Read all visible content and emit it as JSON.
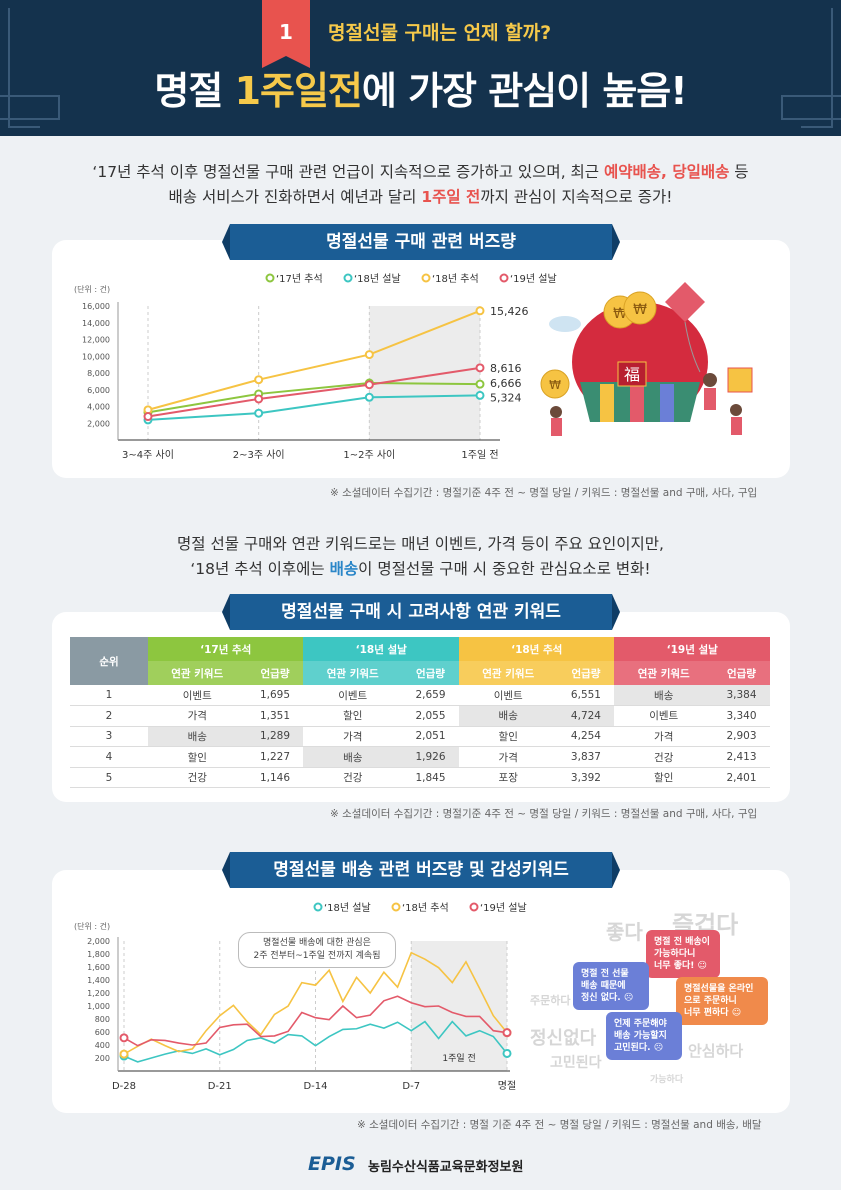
{
  "header": {
    "number": "1",
    "subtitle": "명절선물 구매는 언제 할까?",
    "title_pre": "명절 ",
    "title_highlight": "1주일전",
    "title_post": "에 가장 관심이 높음!"
  },
  "intro1": {
    "line1_a": "‘17년 추석 이후 명절선물 구매 관련 언급이 지속적으로 증가하고 있으며, 최근 ",
    "line1_red": "예약배송, 당일배송",
    "line1_b": " 등",
    "line2_a": "배송 서비스가 진화하면서 예년과 달리 ",
    "line2_red": "1주일 전",
    "line2_b": "까지 관심이 지속적으로 증가!"
  },
  "intro2": {
    "line1": "명절 선물 구매와 연관 키워드로는 매년 이벤트, 가격 등이 주요 요인이지만,",
    "line2_a": "‘18년 추석 이후에는 ",
    "line2_blue": "배송",
    "line2_b": "이 명절선물 구매 시 중요한 관심요소로 변화!"
  },
  "sections": {
    "s1_title": "명절선물 구매 관련 버즈량",
    "s2_title": "명절선물 구매 시 고려사항 연관 키워드",
    "s3_title": "명절선물 배송 관련 버즈량 및 감성키워드"
  },
  "notes": {
    "n1": "※ 소셜데이터 수집기간 : 명절기준 4주 전 ~ 명절 당일 / 키워드 : 명절선물 and 구매, 사다, 구입",
    "n2": "※ 소셜데이터 수집기간 : 명절기준 4주 전 ~ 명절 당일 / 키워드 : 명절선물 and 구매, 사다, 구입",
    "n3": "※ 소셜데이터 수집기간 : 명절 기준 4주 전 ~ 명절 당일 / 키워드 : 명절선물 and 배송, 배달"
  },
  "illustration": {
    "bag_char": "福",
    "coin": "₩"
  },
  "chart_data": [
    {
      "type": "line",
      "unit_label": "(단위 : 건)",
      "categories": [
        "3~4주 사이",
        "2~3주 사이",
        "1~2주 사이",
        "1주일 전"
      ],
      "ylim": [
        0,
        16000
      ],
      "yticks": [
        "2,000",
        "4,000",
        "6,000",
        "8,000",
        "10,000",
        "12,000",
        "14,000",
        "16,000"
      ],
      "legend_position": "top",
      "series": [
        {
          "name": "‘17년 추석",
          "color": "#8dc63f",
          "values": [
            3300,
            5500,
            6800,
            6666
          ]
        },
        {
          "name": "‘18년 설날",
          "color": "#3dc6c2",
          "values": [
            2400,
            3200,
            5100,
            5324
          ]
        },
        {
          "name": "‘18년 추석",
          "color": "#f6c343",
          "values": [
            3600,
            7200,
            10200,
            15426
          ]
        },
        {
          "name": "‘19년 설날",
          "color": "#e35a6a",
          "values": [
            2800,
            4900,
            6600,
            8616
          ]
        }
      ],
      "end_labels": [
        "15,426",
        "8,616",
        "6,666",
        "5,324"
      ]
    },
    {
      "type": "table",
      "headers": {
        "rank": "순위",
        "groups": [
          "‘17년 추석",
          "‘18년 설날",
          "‘18년 추석",
          "‘19년 설날"
        ],
        "sub_keyword": "연관 키워드",
        "sub_count": "언급량"
      },
      "rows": [
        {
          "rank": "1",
          "cells": [
            [
              "이벤트",
              "1,695"
            ],
            [
              "이벤트",
              "2,659"
            ],
            [
              "이벤트",
              "6,551"
            ],
            [
              "배송",
              "3,384"
            ]
          ]
        },
        {
          "rank": "2",
          "cells": [
            [
              "가격",
              "1,351"
            ],
            [
              "할인",
              "2,055"
            ],
            [
              "배송",
              "4,724"
            ],
            [
              "이벤트",
              "3,340"
            ]
          ]
        },
        {
          "rank": "3",
          "cells": [
            [
              "배송",
              "1,289"
            ],
            [
              "가격",
              "2,051"
            ],
            [
              "할인",
              "4,254"
            ],
            [
              "가격",
              "2,903"
            ]
          ]
        },
        {
          "rank": "4",
          "cells": [
            [
              "할인",
              "1,227"
            ],
            [
              "배송",
              "1,926"
            ],
            [
              "가격",
              "3,837"
            ],
            [
              "건강",
              "2,413"
            ]
          ]
        },
        {
          "rank": "5",
          "cells": [
            [
              "건강",
              "1,146"
            ],
            [
              "건강",
              "1,845"
            ],
            [
              "포장",
              "3,392"
            ],
            [
              "할인",
              "2,401"
            ]
          ]
        }
      ],
      "highlight_keyword": "배송"
    },
    {
      "type": "line",
      "unit_label": "(단위 : 건)",
      "x": [
        -28,
        -27,
        -26,
        -25,
        -24,
        -23,
        -22,
        -21,
        -20,
        -19,
        -18,
        -17,
        -16,
        -15,
        -14,
        -13,
        -12,
        -11,
        -10,
        -9,
        -8,
        -7,
        -6,
        -5,
        -4,
        -3,
        -2,
        -1,
        0
      ],
      "xticks": [
        "D-28",
        "D-21",
        "D-14",
        "D-7",
        "명절"
      ],
      "ylim": [
        0,
        2000
      ],
      "yticks": [
        "200",
        "400",
        "600",
        "800",
        "1,000",
        "1,200",
        "1,400",
        "1,600",
        "1,800",
        "2,000"
      ],
      "legend_position": "top",
      "shaded_label": "1주일 전",
      "annotation": "명절선물 배송에 대한 관심은\n2주 전부터~1주일 전까지 계속됨",
      "series": [
        {
          "name": "‘18년 설날",
          "color": "#3dc6c2",
          "values": [
            230,
            140,
            200,
            260,
            310,
            270,
            340,
            250,
            330,
            470,
            510,
            430,
            560,
            540,
            390,
            530,
            640,
            650,
            720,
            660,
            750,
            620,
            760,
            500,
            760,
            540,
            620,
            530,
            270
          ]
        },
        {
          "name": "‘18년 추석",
          "color": "#f6c343",
          "values": [
            260,
            380,
            490,
            390,
            300,
            340,
            620,
            850,
            1010,
            760,
            560,
            870,
            1000,
            1360,
            1320,
            1550,
            1070,
            1440,
            1200,
            1520,
            1290,
            1820,
            1720,
            1590,
            1360,
            1680,
            1270,
            850,
            590
          ]
        },
        {
          "name": "‘19년 설날",
          "color": "#e35a6a",
          "values": [
            510,
            390,
            480,
            470,
            430,
            400,
            430,
            670,
            710,
            720,
            530,
            540,
            610,
            900,
            820,
            790,
            1000,
            820,
            860,
            1080,
            1150,
            1050,
            990,
            1000,
            900,
            840,
            840,
            620,
            590
          ]
        }
      ]
    }
  ],
  "sentiment": {
    "ghost_words": [
      "좋다",
      "즐겁다",
      "주문하다",
      "정신없다",
      "고민된다",
      "안심하다",
      "가능하다"
    ],
    "bubbles": [
      {
        "text": "명절 전 배송이\n가능하다니\n너무 좋다!",
        "face": "☺",
        "color": "#e35a6a"
      },
      {
        "text": "명절 전 선물\n배송 때문에\n정신 없다.",
        "face": "☹",
        "color": "#6b7fd7"
      },
      {
        "text": "명절선물을 온라인\n으로 주문하니\n너무 편하다",
        "face": "☺",
        "color": "#f08a4b"
      },
      {
        "text": "언제 주문해야\n배송 가능할지\n고민된다.",
        "face": "☹",
        "color": "#6b7fd7"
      }
    ]
  },
  "footer": {
    "logo": "EPIS",
    "org": "농림수산식품교육문화정보원"
  }
}
